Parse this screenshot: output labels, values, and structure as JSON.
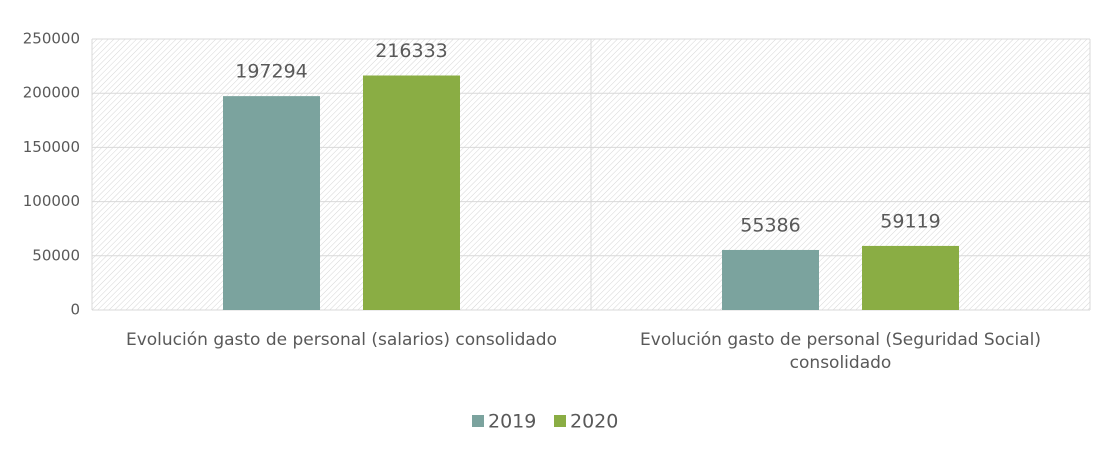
{
  "chart_data": {
    "type": "bar",
    "categories": [
      "Evolución gasto de personal (salarios) consolidado",
      "Evolución gasto de personal (Seguridad Social) consolidado"
    ],
    "series": [
      {
        "name": "2019",
        "color": "#7ba39e",
        "values": [
          197294,
          55386
        ]
      },
      {
        "name": "2020",
        "color": "#8aad44",
        "values": [
          216333,
          59119
        ]
      }
    ],
    "ylim": [
      0,
      250000
    ],
    "yticks": [
      0,
      50000,
      100000,
      150000,
      200000,
      250000
    ],
    "grid": true,
    "legend": "bottom"
  }
}
